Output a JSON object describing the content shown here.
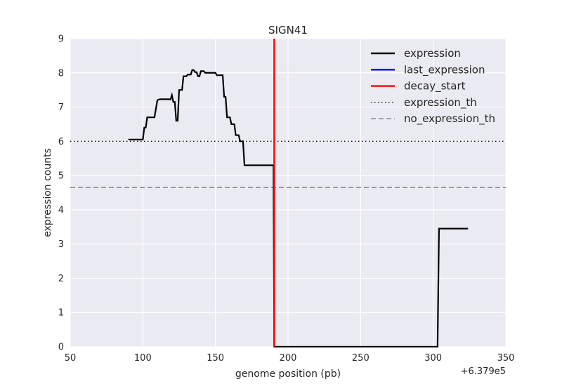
{
  "chart_data": {
    "type": "line",
    "title": "SIGN41",
    "xlabel": "genome position (pb)",
    "ylabel": "expression counts",
    "x_offset_label": "+6.379e5",
    "xlim": [
      50,
      350
    ],
    "ylim": [
      0,
      9
    ],
    "xticks": [
      "50",
      "100",
      "150",
      "200",
      "250",
      "300",
      "350"
    ],
    "yticks": [
      "0",
      "1",
      "2",
      "3",
      "4",
      "5",
      "6",
      "7",
      "8",
      "9"
    ],
    "grid": true,
    "background": "#eaeaf2",
    "legend_position": "top-right",
    "series": [
      {
        "name": "expression",
        "color": "#000000",
        "style": "solid",
        "x": [
          90,
          99,
          100,
          101,
          102,
          103,
          104,
          105,
          108,
          110,
          111,
          112,
          113,
          115,
          117,
          118,
          119,
          120,
          121,
          122,
          123,
          124,
          125,
          126,
          127,
          128,
          129,
          130,
          131,
          132,
          133,
          134,
          135,
          136,
          137,
          138,
          139,
          140,
          141,
          142,
          143,
          144,
          145,
          146,
          147,
          148,
          149,
          150,
          151,
          152,
          153,
          154,
          155,
          156,
          157,
          158,
          159,
          160,
          161,
          162,
          163,
          164,
          165,
          166,
          167,
          168,
          169,
          170,
          171,
          172,
          173,
          174,
          175,
          176,
          177,
          178,
          179,
          180,
          181,
          182,
          183,
          184,
          185,
          186,
          187,
          188,
          189,
          190,
          190.5,
          303,
          304,
          305,
          306,
          324
        ],
        "y": [
          6.05,
          6.05,
          6.05,
          6.4,
          6.4,
          6.7,
          6.7,
          6.7,
          6.7,
          7.2,
          7.22,
          7.23,
          7.23,
          7.23,
          7.23,
          7.23,
          7.22,
          7.35,
          7.15,
          7.15,
          6.6,
          6.6,
          7.5,
          7.5,
          7.5,
          7.9,
          7.9,
          7.9,
          7.95,
          7.95,
          7.95,
          8.08,
          8.08,
          8.02,
          8.02,
          7.9,
          7.9,
          8.05,
          8.05,
          8.05,
          8.0,
          8.0,
          8.0,
          8.0,
          8.0,
          8.0,
          8.0,
          8.0,
          7.93,
          7.93,
          7.93,
          7.93,
          7.93,
          7.3,
          7.3,
          6.7,
          6.7,
          6.7,
          6.5,
          6.5,
          6.5,
          6.18,
          6.18,
          6.18,
          6.0,
          6.0,
          6.0,
          5.3,
          5.3,
          5.3,
          5.3,
          5.3,
          5.3,
          5.3,
          5.3,
          5.3,
          5.3,
          5.3,
          5.3,
          5.3,
          5.3,
          5.3,
          5.3,
          5.3,
          5.3,
          5.3,
          5.3,
          5.3,
          0.0,
          0.0,
          3.45,
          3.45,
          3.45,
          3.45
        ]
      },
      {
        "name": "last_expression",
        "color": "#0000ff",
        "style": "solid",
        "x": [
          190.5
        ],
        "y": [
          0
        ]
      },
      {
        "name": "decay_start",
        "color": "#ff0000",
        "style": "solid",
        "vertical_line_x": 190.5
      },
      {
        "name": "expression_th",
        "color": "#000000",
        "style": "dotted",
        "horizontal_line_y": 6.0
      },
      {
        "name": "no_expression_th",
        "color": "#808080",
        "style": "dashed",
        "horizontal_line_y": 4.65
      }
    ]
  }
}
